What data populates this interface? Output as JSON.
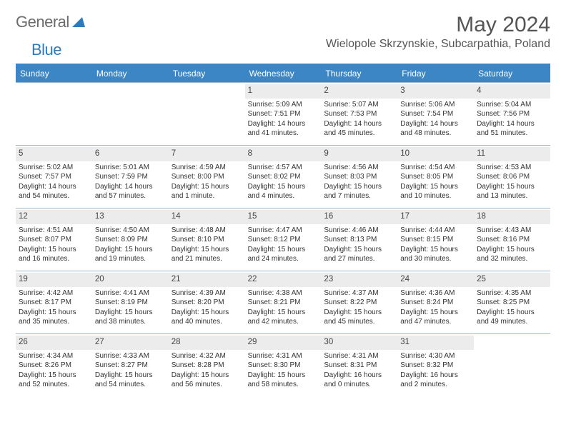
{
  "brand": {
    "part1": "General",
    "part2": "Blue"
  },
  "title": "May 2024",
  "location": "Wielopole Skrzynskie, Subcarpathia, Poland",
  "accent_color": "#3d86c6",
  "daynum_bg": "#ececec",
  "border_color": "#9eb8cf",
  "text_color": "#333333",
  "day_labels": [
    "Sunday",
    "Monday",
    "Tuesday",
    "Wednesday",
    "Thursday",
    "Friday",
    "Saturday"
  ],
  "weeks": [
    [
      null,
      null,
      null,
      {
        "n": "1",
        "sr": "Sunrise: 5:09 AM",
        "ss": "Sunset: 7:51 PM",
        "d1": "Daylight: 14 hours",
        "d2": "and 41 minutes."
      },
      {
        "n": "2",
        "sr": "Sunrise: 5:07 AM",
        "ss": "Sunset: 7:53 PM",
        "d1": "Daylight: 14 hours",
        "d2": "and 45 minutes."
      },
      {
        "n": "3",
        "sr": "Sunrise: 5:06 AM",
        "ss": "Sunset: 7:54 PM",
        "d1": "Daylight: 14 hours",
        "d2": "and 48 minutes."
      },
      {
        "n": "4",
        "sr": "Sunrise: 5:04 AM",
        "ss": "Sunset: 7:56 PM",
        "d1": "Daylight: 14 hours",
        "d2": "and 51 minutes."
      }
    ],
    [
      {
        "n": "5",
        "sr": "Sunrise: 5:02 AM",
        "ss": "Sunset: 7:57 PM",
        "d1": "Daylight: 14 hours",
        "d2": "and 54 minutes."
      },
      {
        "n": "6",
        "sr": "Sunrise: 5:01 AM",
        "ss": "Sunset: 7:59 PM",
        "d1": "Daylight: 14 hours",
        "d2": "and 57 minutes."
      },
      {
        "n": "7",
        "sr": "Sunrise: 4:59 AM",
        "ss": "Sunset: 8:00 PM",
        "d1": "Daylight: 15 hours",
        "d2": "and 1 minute."
      },
      {
        "n": "8",
        "sr": "Sunrise: 4:57 AM",
        "ss": "Sunset: 8:02 PM",
        "d1": "Daylight: 15 hours",
        "d2": "and 4 minutes."
      },
      {
        "n": "9",
        "sr": "Sunrise: 4:56 AM",
        "ss": "Sunset: 8:03 PM",
        "d1": "Daylight: 15 hours",
        "d2": "and 7 minutes."
      },
      {
        "n": "10",
        "sr": "Sunrise: 4:54 AM",
        "ss": "Sunset: 8:05 PM",
        "d1": "Daylight: 15 hours",
        "d2": "and 10 minutes."
      },
      {
        "n": "11",
        "sr": "Sunrise: 4:53 AM",
        "ss": "Sunset: 8:06 PM",
        "d1": "Daylight: 15 hours",
        "d2": "and 13 minutes."
      }
    ],
    [
      {
        "n": "12",
        "sr": "Sunrise: 4:51 AM",
        "ss": "Sunset: 8:07 PM",
        "d1": "Daylight: 15 hours",
        "d2": "and 16 minutes."
      },
      {
        "n": "13",
        "sr": "Sunrise: 4:50 AM",
        "ss": "Sunset: 8:09 PM",
        "d1": "Daylight: 15 hours",
        "d2": "and 19 minutes."
      },
      {
        "n": "14",
        "sr": "Sunrise: 4:48 AM",
        "ss": "Sunset: 8:10 PM",
        "d1": "Daylight: 15 hours",
        "d2": "and 21 minutes."
      },
      {
        "n": "15",
        "sr": "Sunrise: 4:47 AM",
        "ss": "Sunset: 8:12 PM",
        "d1": "Daylight: 15 hours",
        "d2": "and 24 minutes."
      },
      {
        "n": "16",
        "sr": "Sunrise: 4:46 AM",
        "ss": "Sunset: 8:13 PM",
        "d1": "Daylight: 15 hours",
        "d2": "and 27 minutes."
      },
      {
        "n": "17",
        "sr": "Sunrise: 4:44 AM",
        "ss": "Sunset: 8:15 PM",
        "d1": "Daylight: 15 hours",
        "d2": "and 30 minutes."
      },
      {
        "n": "18",
        "sr": "Sunrise: 4:43 AM",
        "ss": "Sunset: 8:16 PM",
        "d1": "Daylight: 15 hours",
        "d2": "and 32 minutes."
      }
    ],
    [
      {
        "n": "19",
        "sr": "Sunrise: 4:42 AM",
        "ss": "Sunset: 8:17 PM",
        "d1": "Daylight: 15 hours",
        "d2": "and 35 minutes."
      },
      {
        "n": "20",
        "sr": "Sunrise: 4:41 AM",
        "ss": "Sunset: 8:19 PM",
        "d1": "Daylight: 15 hours",
        "d2": "and 38 minutes."
      },
      {
        "n": "21",
        "sr": "Sunrise: 4:39 AM",
        "ss": "Sunset: 8:20 PM",
        "d1": "Daylight: 15 hours",
        "d2": "and 40 minutes."
      },
      {
        "n": "22",
        "sr": "Sunrise: 4:38 AM",
        "ss": "Sunset: 8:21 PM",
        "d1": "Daylight: 15 hours",
        "d2": "and 42 minutes."
      },
      {
        "n": "23",
        "sr": "Sunrise: 4:37 AM",
        "ss": "Sunset: 8:22 PM",
        "d1": "Daylight: 15 hours",
        "d2": "and 45 minutes."
      },
      {
        "n": "24",
        "sr": "Sunrise: 4:36 AM",
        "ss": "Sunset: 8:24 PM",
        "d1": "Daylight: 15 hours",
        "d2": "and 47 minutes."
      },
      {
        "n": "25",
        "sr": "Sunrise: 4:35 AM",
        "ss": "Sunset: 8:25 PM",
        "d1": "Daylight: 15 hours",
        "d2": "and 49 minutes."
      }
    ],
    [
      {
        "n": "26",
        "sr": "Sunrise: 4:34 AM",
        "ss": "Sunset: 8:26 PM",
        "d1": "Daylight: 15 hours",
        "d2": "and 52 minutes."
      },
      {
        "n": "27",
        "sr": "Sunrise: 4:33 AM",
        "ss": "Sunset: 8:27 PM",
        "d1": "Daylight: 15 hours",
        "d2": "and 54 minutes."
      },
      {
        "n": "28",
        "sr": "Sunrise: 4:32 AM",
        "ss": "Sunset: 8:28 PM",
        "d1": "Daylight: 15 hours",
        "d2": "and 56 minutes."
      },
      {
        "n": "29",
        "sr": "Sunrise: 4:31 AM",
        "ss": "Sunset: 8:30 PM",
        "d1": "Daylight: 15 hours",
        "d2": "and 58 minutes."
      },
      {
        "n": "30",
        "sr": "Sunrise: 4:31 AM",
        "ss": "Sunset: 8:31 PM",
        "d1": "Daylight: 16 hours",
        "d2": "and 0 minutes."
      },
      {
        "n": "31",
        "sr": "Sunrise: 4:30 AM",
        "ss": "Sunset: 8:32 PM",
        "d1": "Daylight: 16 hours",
        "d2": "and 2 minutes."
      },
      null
    ]
  ]
}
